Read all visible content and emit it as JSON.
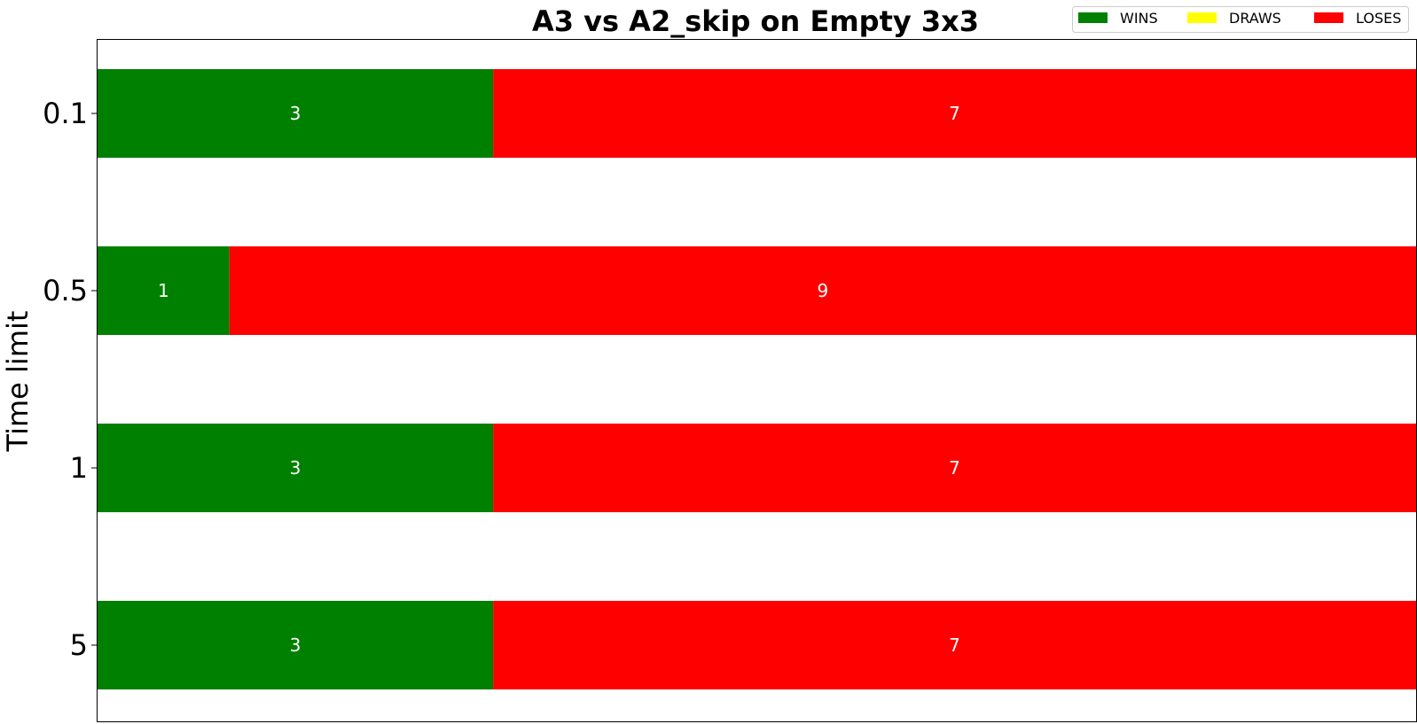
{
  "chart_data": {
    "type": "bar",
    "orientation": "horizontal",
    "stacked": true,
    "title": "A3 vs A2_skip on Empty 3x3",
    "xlabel": "",
    "ylabel": "Time limit",
    "categories": [
      "0.1",
      "0.5",
      "1",
      "5"
    ],
    "series": [
      {
        "name": "WINS",
        "color": "#008000",
        "values": [
          3,
          1,
          3,
          3
        ]
      },
      {
        "name": "DRAWS",
        "color": "#ffff00",
        "values": [
          0,
          0,
          0,
          0
        ]
      },
      {
        "name": "LOSES",
        "color": "#ff0000",
        "values": [
          7,
          9,
          7,
          7
        ]
      }
    ],
    "xlim": [
      0,
      10
    ],
    "x_axis_visible": false,
    "grid": false,
    "legend_position": "top-right"
  }
}
